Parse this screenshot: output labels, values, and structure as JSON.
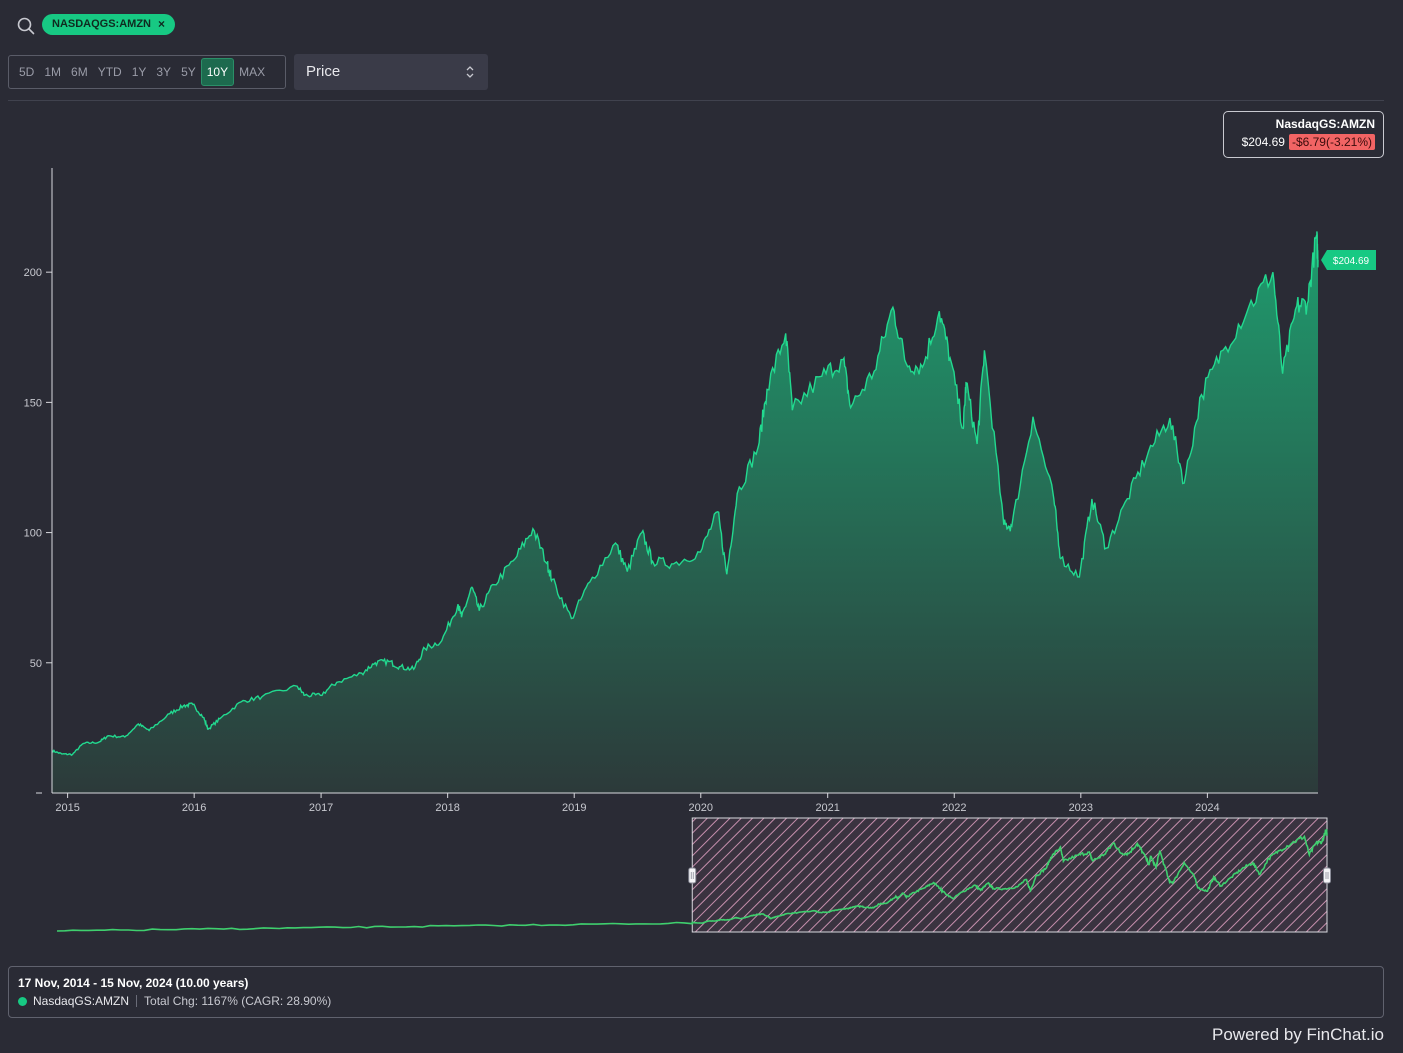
{
  "search": {
    "chip_label": "NASDAQGS:AMZN",
    "chip_close": "×"
  },
  "ranges": [
    "5D",
    "1M",
    "6M",
    "YTD",
    "1Y",
    "3Y",
    "5Y",
    "10Y",
    "MAX"
  ],
  "active_range": "10Y",
  "metric_select": {
    "value": "Price"
  },
  "legend": {
    "name": "NasdaqGS:AMZN",
    "price": "$204.69",
    "change": "-$6.79(-3.21%)"
  },
  "last_price_tag": "$204.69",
  "info": {
    "period": "17 Nov, 2014 - 15 Nov, 2024 (10.00 years)",
    "series_name": "NasdaqGS:AMZN",
    "total_change": "Total Chg: 1167% (CAGR: 28.90%)"
  },
  "powered_by": "Powered by FinChat.io",
  "colors": {
    "accent": "#17c983",
    "negative": "#f26464",
    "background": "#2a2b35",
    "selection": "#e8a6c8"
  },
  "chart_data": {
    "type": "area",
    "title": "",
    "xlabel": "",
    "ylabel": "",
    "x_ticks": [
      "2015",
      "2016",
      "2017",
      "2018",
      "2019",
      "2020",
      "2021",
      "2022",
      "2023",
      "2024"
    ],
    "y_ticks": [
      50,
      100,
      150,
      200
    ],
    "ylim": [
      0,
      240
    ],
    "xlim": [
      "2014-11-17",
      "2024-11-15"
    ],
    "grid": false,
    "series": [
      {
        "name": "NasdaqGS:AMZN",
        "points": [
          [
            "2014-11-17",
            16.3
          ],
          [
            "2014-12-15",
            15.0
          ],
          [
            "2015-01-15",
            14.8
          ],
          [
            "2015-02-15",
            19.0
          ],
          [
            "2015-04-01",
            19.5
          ],
          [
            "2015-04-28",
            22.0
          ],
          [
            "2015-06-15",
            21.5
          ],
          [
            "2015-07-24",
            26.5
          ],
          [
            "2015-08-24",
            24.0
          ],
          [
            "2015-10-23",
            30.5
          ],
          [
            "2015-12-01",
            33.5
          ],
          [
            "2015-12-28",
            34.0
          ],
          [
            "2016-01-28",
            29.0
          ],
          [
            "2016-02-10",
            24.5
          ],
          [
            "2016-03-15",
            28.5
          ],
          [
            "2016-05-15",
            35.0
          ],
          [
            "2016-07-15",
            37.0
          ],
          [
            "2016-10-24",
            41.0
          ],
          [
            "2016-11-15",
            37.5
          ],
          [
            "2016-12-30",
            37.5
          ],
          [
            "2017-02-15",
            42.5
          ],
          [
            "2017-04-28",
            46.0
          ],
          [
            "2017-06-06",
            50.0
          ],
          [
            "2017-07-15",
            50.5
          ],
          [
            "2017-08-15",
            48.5
          ],
          [
            "2017-09-25",
            47.5
          ],
          [
            "2017-10-27",
            55.5
          ],
          [
            "2017-12-15",
            58.5
          ],
          [
            "2018-01-31",
            72.5
          ],
          [
            "2018-02-10",
            67.5
          ],
          [
            "2018-03-12",
            79.0
          ],
          [
            "2018-04-02",
            70.0
          ],
          [
            "2018-05-15",
            80.0
          ],
          [
            "2018-07-15",
            90.0
          ],
          [
            "2018-09-04",
            101.5
          ],
          [
            "2018-10-15",
            88.0
          ],
          [
            "2018-10-29",
            82.0
          ],
          [
            "2018-12-24",
            67.0
          ],
          [
            "2019-02-15",
            81.0
          ],
          [
            "2019-04-30",
            96.0
          ],
          [
            "2019-06-03",
            85.0
          ],
          [
            "2019-07-15",
            100.0
          ],
          [
            "2019-08-15",
            89.0
          ],
          [
            "2019-10-15",
            88.0
          ],
          [
            "2019-12-31",
            92.5
          ],
          [
            "2020-02-19",
            108.0
          ],
          [
            "2020-03-16",
            84.0
          ],
          [
            "2020-04-15",
            115.0
          ],
          [
            "2020-06-15",
            133.0
          ],
          [
            "2020-07-10",
            155.0
          ],
          [
            "2020-09-02",
            176.5
          ],
          [
            "2020-09-21",
            147.0
          ],
          [
            "2020-12-15",
            160.0
          ],
          [
            "2021-02-15",
            166.5
          ],
          [
            "2021-03-08",
            148.0
          ],
          [
            "2021-05-15",
            162.0
          ],
          [
            "2021-07-08",
            186.5
          ],
          [
            "2021-08-15",
            165.0
          ],
          [
            "2021-10-01",
            163.5
          ],
          [
            "2021-11-19",
            185.0
          ],
          [
            "2021-12-20",
            167.0
          ],
          [
            "2022-01-27",
            140.0
          ],
          [
            "2022-02-04",
            157.5
          ],
          [
            "2022-03-08",
            134.0
          ],
          [
            "2022-03-29",
            170.0
          ],
          [
            "2022-05-24",
            103.0
          ],
          [
            "2022-06-16",
            102.5
          ],
          [
            "2022-08-16",
            144.5
          ],
          [
            "2022-10-15",
            113.0
          ],
          [
            "2022-11-04",
            90.0
          ],
          [
            "2022-12-28",
            83.0
          ],
          [
            "2023-02-02",
            112.9
          ],
          [
            "2023-03-15",
            94.0
          ],
          [
            "2023-05-15",
            113.0
          ],
          [
            "2023-07-15",
            131.0
          ],
          [
            "2023-09-15",
            144.0
          ],
          [
            "2023-10-26",
            119.0
          ],
          [
            "2023-12-15",
            153.0
          ],
          [
            "2024-02-15",
            170.0
          ],
          [
            "2024-04-29",
            186.5
          ],
          [
            "2024-07-08",
            200.0
          ],
          [
            "2024-08-05",
            161.0
          ],
          [
            "2024-09-15",
            187.0
          ],
          [
            "2024-10-15",
            188.0
          ],
          [
            "2024-11-11",
            214.1
          ],
          [
            "2024-11-15",
            204.69
          ]
        ]
      }
    ]
  }
}
